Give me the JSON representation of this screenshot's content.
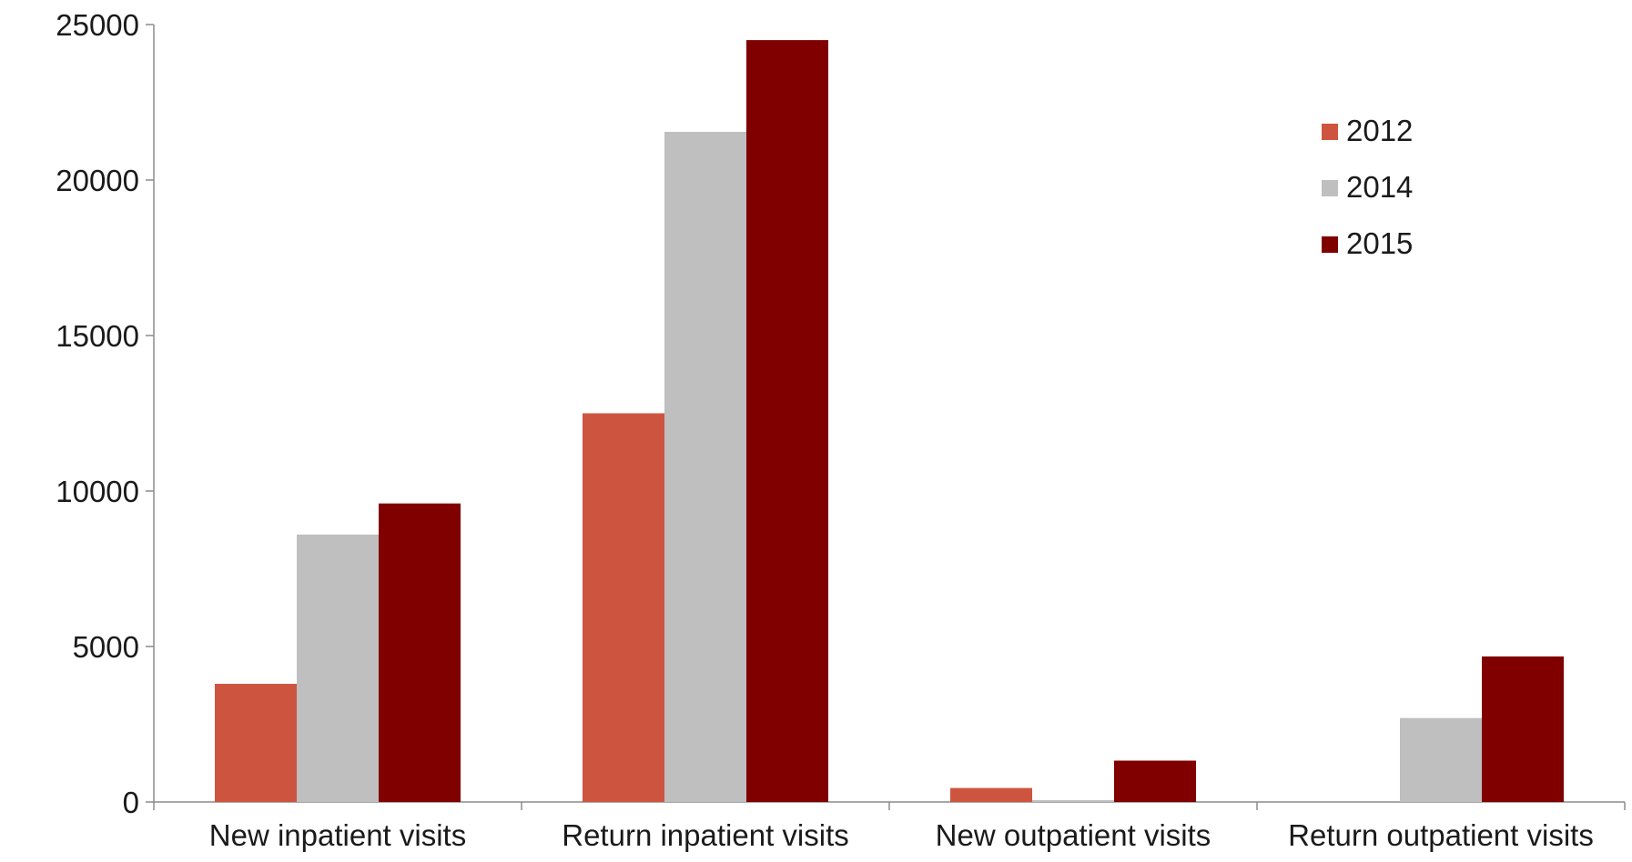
{
  "chart_data": {
    "type": "bar",
    "categories": [
      "New inpatient visits",
      "Return inpatient visits",
      "New outpatient visits",
      "Return outpatient visits"
    ],
    "series": [
      {
        "name": "2012",
        "color": "#cd5540",
        "values": [
          3800,
          12500,
          450,
          0
        ]
      },
      {
        "name": "2014",
        "color": "#bfbfbf",
        "values": [
          8600,
          21550,
          60,
          2700
        ]
      },
      {
        "name": "2015",
        "color": "#800000",
        "values": [
          9600,
          24500,
          1330,
          4680
        ]
      }
    ],
    "ylim": [
      0,
      25000
    ],
    "yticks": [
      0,
      5000,
      10000,
      15000,
      20000,
      25000
    ],
    "ytick_labels": [
      "0",
      "5000",
      "10000",
      "15000",
      "20000",
      "25000"
    ],
    "grid": false,
    "legend_position": "top-right",
    "title": "",
    "xlabel": "",
    "ylabel": ""
  }
}
